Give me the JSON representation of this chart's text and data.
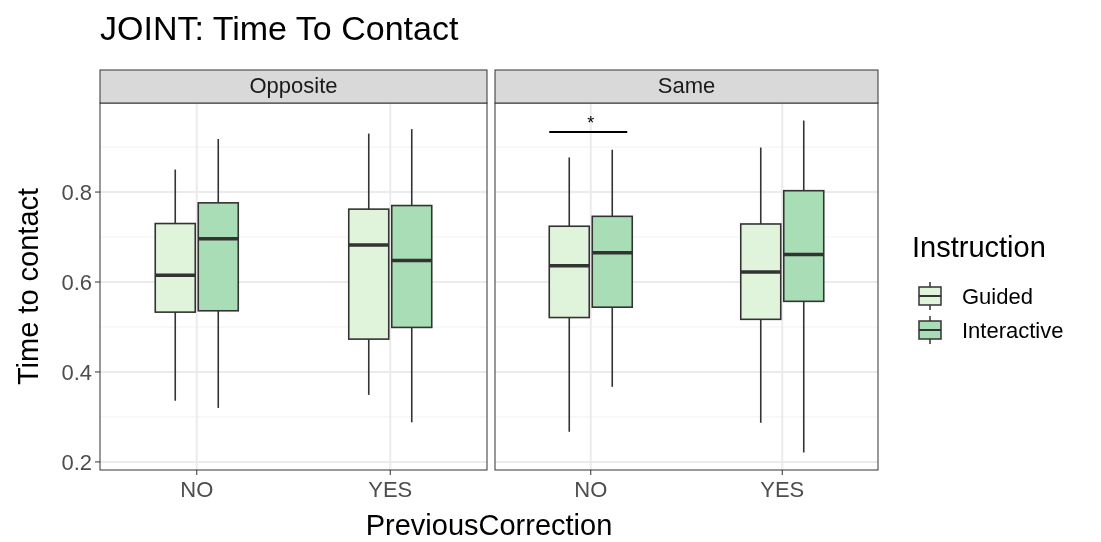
{
  "chart_data": [
    {
      "type": "box",
      "title": "JOINT: Time To Contact",
      "subtitle": "Opposite",
      "xlabel": "PreviousCorrection",
      "ylabel": "Time to contact",
      "categories": [
        "NO",
        "YES"
      ],
      "ylim": [
        0.182,
        0.998
      ],
      "yticks": [
        0.2,
        0.4,
        0.6,
        0.8
      ],
      "grid": true,
      "legend": false,
      "series": [
        {
          "color": "#e0f3db",
          "boxes": [
            {
              "low": 0.336,
              "q1": 0.533,
              "median": 0.615,
              "q3": 0.73,
              "high": 0.85
            },
            {
              "low": 0.349,
              "q1": 0.473,
              "median": 0.682,
              "q3": 0.762,
              "high": 0.93
            }
          ]
        },
        {
          "color": "#a8ddb5",
          "boxes": [
            {
              "low": 0.32,
              "q1": 0.536,
              "median": 0.696,
              "q3": 0.776,
              "high": 0.918
            },
            {
              "low": 0.288,
              "q1": 0.499,
              "median": 0.648,
              "q3": 0.77,
              "high": 0.94
            }
          ]
        }
      ]
    },
    {
      "type": "box",
      "subtitle": "Same",
      "legend_title": "Instruction",
      "legend": "right",
      "tick_labels": "x",
      "categories": [
        "NO",
        "YES"
      ],
      "ylim": [
        0.182,
        0.998
      ],
      "yticks": [
        0.2,
        0.4,
        0.6,
        0.8
      ],
      "grid": true,
      "annotations": [
        "*"
      ],
      "series": [
        {
          "name": "Guided",
          "color": "#e0f3db",
          "boxes": [
            {
              "low": 0.267,
              "q1": 0.521,
              "median": 0.636,
              "q3": 0.724,
              "high": 0.877
            },
            {
              "low": 0.287,
              "q1": 0.517,
              "median": 0.622,
              "q3": 0.729,
              "high": 0.899
            }
          ]
        },
        {
          "name": "Interactive",
          "color": "#a8ddb5",
          "boxes": [
            {
              "low": 0.367,
              "q1": 0.544,
              "median": 0.665,
              "q3": 0.746,
              "high": 0.894
            },
            {
              "low": 0.221,
              "q1": 0.557,
              "median": 0.661,
              "q3": 0.803,
              "high": 0.959
            }
          ]
        }
      ]
    }
  ]
}
